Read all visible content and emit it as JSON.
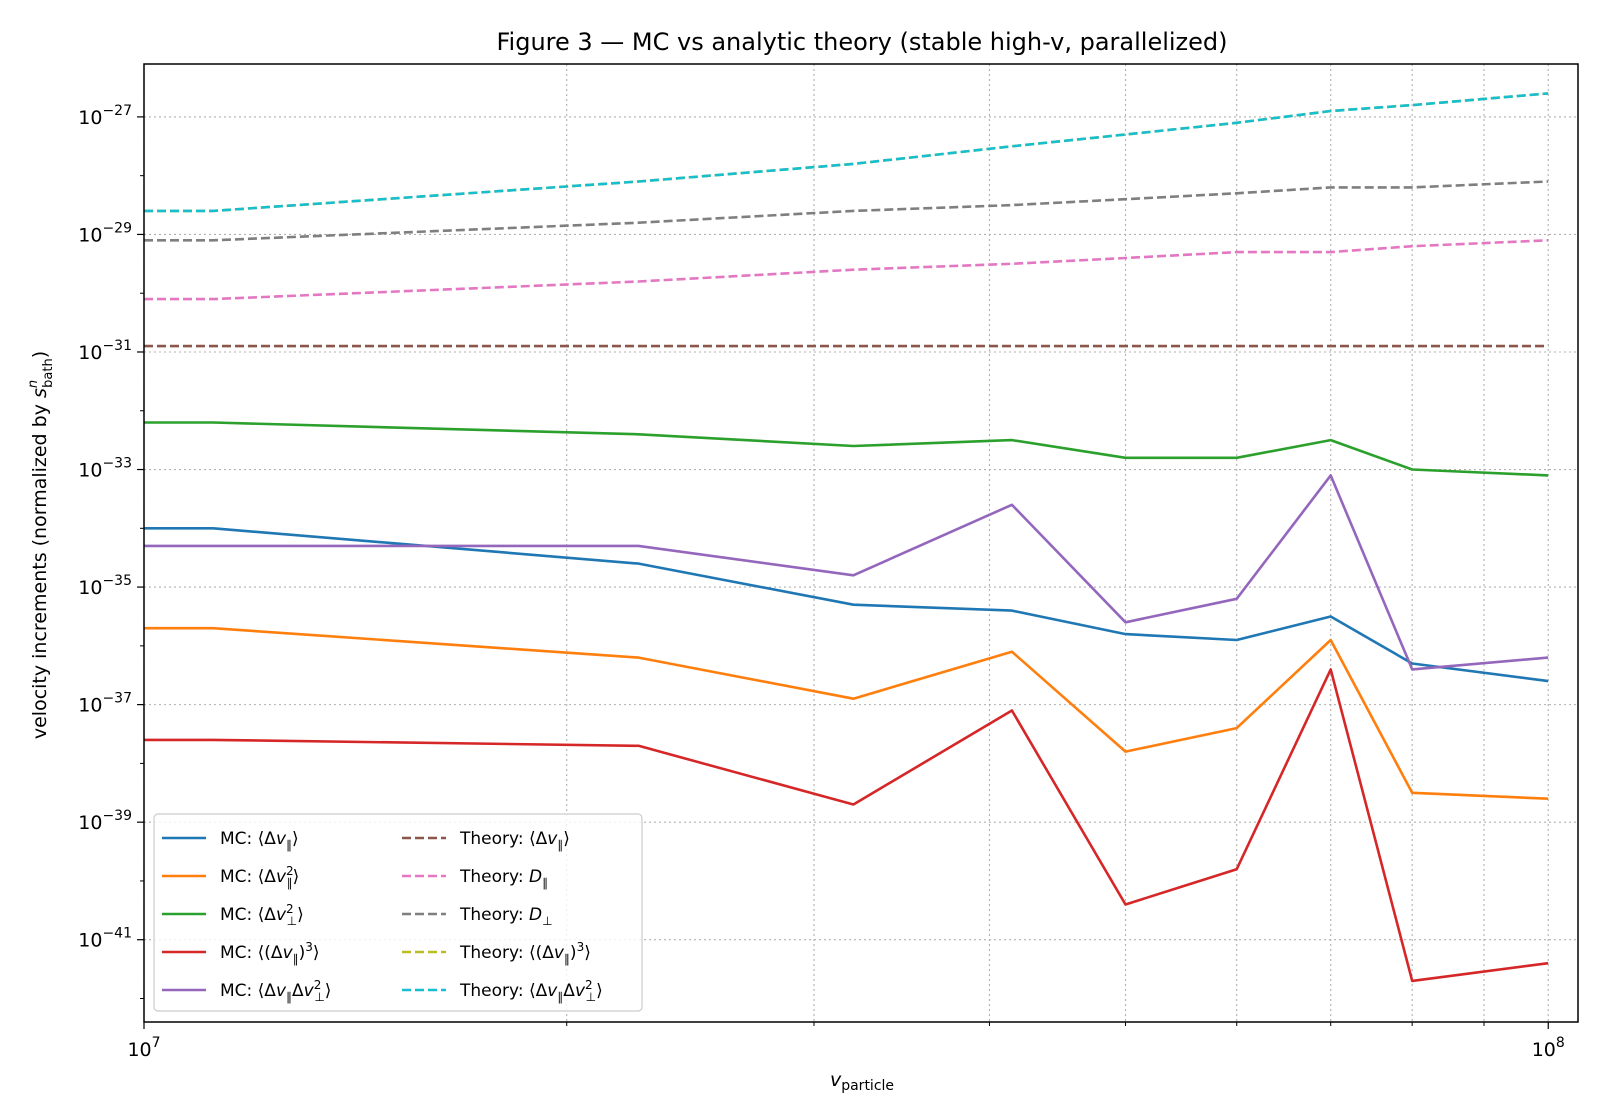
{
  "chart_data": {
    "type": "line",
    "title": "Figure 3 — MC vs analytic theory (stable high-v, parallelized)",
    "xlabel": "v_particle",
    "ylabel": "velocity increments (normalized by s_bath^n)",
    "xscale": "log",
    "yscale": "log",
    "xlim": [
      10000000.0,
      105000000.0
    ],
    "ylim_exp": [
      -42.4,
      -26.1
    ],
    "x_tick_labels": [
      "10^7",
      "10^8"
    ],
    "y_tick_labels": [
      "10^-41",
      "10^-39",
      "10^-37",
      "10^-35",
      "10^-33",
      "10^-31",
      "10^-29",
      "10^-27"
    ],
    "grid": true,
    "legend_position": "lower-left",
    "x": [
      10000000.0,
      11200000.0,
      22500000.0,
      32000000.0,
      41500000.0,
      50000000.0,
      60000000.0,
      70000000.0,
      80000000.0,
      100000000.0
    ],
    "series": [
      {
        "name": "MC: ⟨Δv∥⟩",
        "style": "solid",
        "color": "#1f77b4",
        "y_exp": [
          -34.0,
          -34.0,
          -34.6,
          -35.3,
          -35.4,
          -35.8,
          -35.9,
          -35.5,
          -36.3,
          -36.6
        ]
      },
      {
        "name": "MC: ⟨Δv∥²⟩",
        "style": "solid",
        "color": "#ff7f0e",
        "y_exp": [
          -35.7,
          -35.7,
          -36.2,
          -36.9,
          -36.1,
          -37.8,
          -37.4,
          -35.9,
          -38.5,
          -38.6
        ]
      },
      {
        "name": "MC: ⟨Δv⊥²⟩",
        "style": "solid",
        "color": "#2ca02c",
        "y_exp": [
          -32.2,
          -32.2,
          -32.4,
          -32.6,
          -32.5,
          -32.8,
          -32.8,
          -32.5,
          -33.0,
          -33.1
        ]
      },
      {
        "name": "MC: ⟨(Δv∥)³⟩",
        "style": "solid",
        "color": "#d62728",
        "y_exp": [
          -37.6,
          -37.6,
          -37.7,
          -38.7,
          -37.1,
          -40.4,
          -39.8,
          -36.4,
          -41.7,
          -41.4
        ]
      },
      {
        "name": "MC: ⟨Δv∥Δv⊥²⟩",
        "style": "solid",
        "color": "#9467bd",
        "y_exp": [
          -34.3,
          -34.3,
          -34.3,
          -34.8,
          -33.6,
          -35.6,
          -35.2,
          -33.1,
          -36.4,
          -36.2
        ]
      },
      {
        "name": "Theory: ⟨Δv∥⟩",
        "style": "dashed",
        "color": "#8c564b",
        "y_exp": [
          -30.9,
          -30.9,
          -30.9,
          -30.9,
          -30.9,
          -30.9,
          -30.9,
          -30.9,
          -30.9,
          -30.9
        ]
      },
      {
        "name": "Theory: D∥",
        "style": "dashed",
        "color": "#e377c2",
        "y_exp": [
          -30.1,
          -30.1,
          -29.8,
          -29.6,
          -29.5,
          -29.4,
          -29.3,
          -29.3,
          -29.2,
          -29.1
        ]
      },
      {
        "name": "Theory: D⊥",
        "style": "dashed",
        "color": "#7f7f7f",
        "y_exp": [
          -29.1,
          -29.1,
          -28.8,
          -28.6,
          -28.5,
          -28.4,
          -28.3,
          -28.2,
          -28.2,
          -28.1
        ]
      },
      {
        "name": "Theory: ⟨(Δv∥)³⟩",
        "style": "dashed",
        "color": "#bcbd22",
        "y_exp": [
          -28.6,
          -28.6,
          -28.1,
          -27.8,
          -27.5,
          -27.3,
          -27.1,
          -26.9,
          -26.8,
          -26.6
        ]
      },
      {
        "name": "Theory: ⟨Δv∥Δv⊥²⟩",
        "style": "dashed",
        "color": "#17becf",
        "y_exp": [
          -28.6,
          -28.6,
          -28.1,
          -27.8,
          -27.5,
          -27.3,
          -27.1,
          -26.9,
          -26.8,
          -26.6
        ]
      }
    ]
  }
}
